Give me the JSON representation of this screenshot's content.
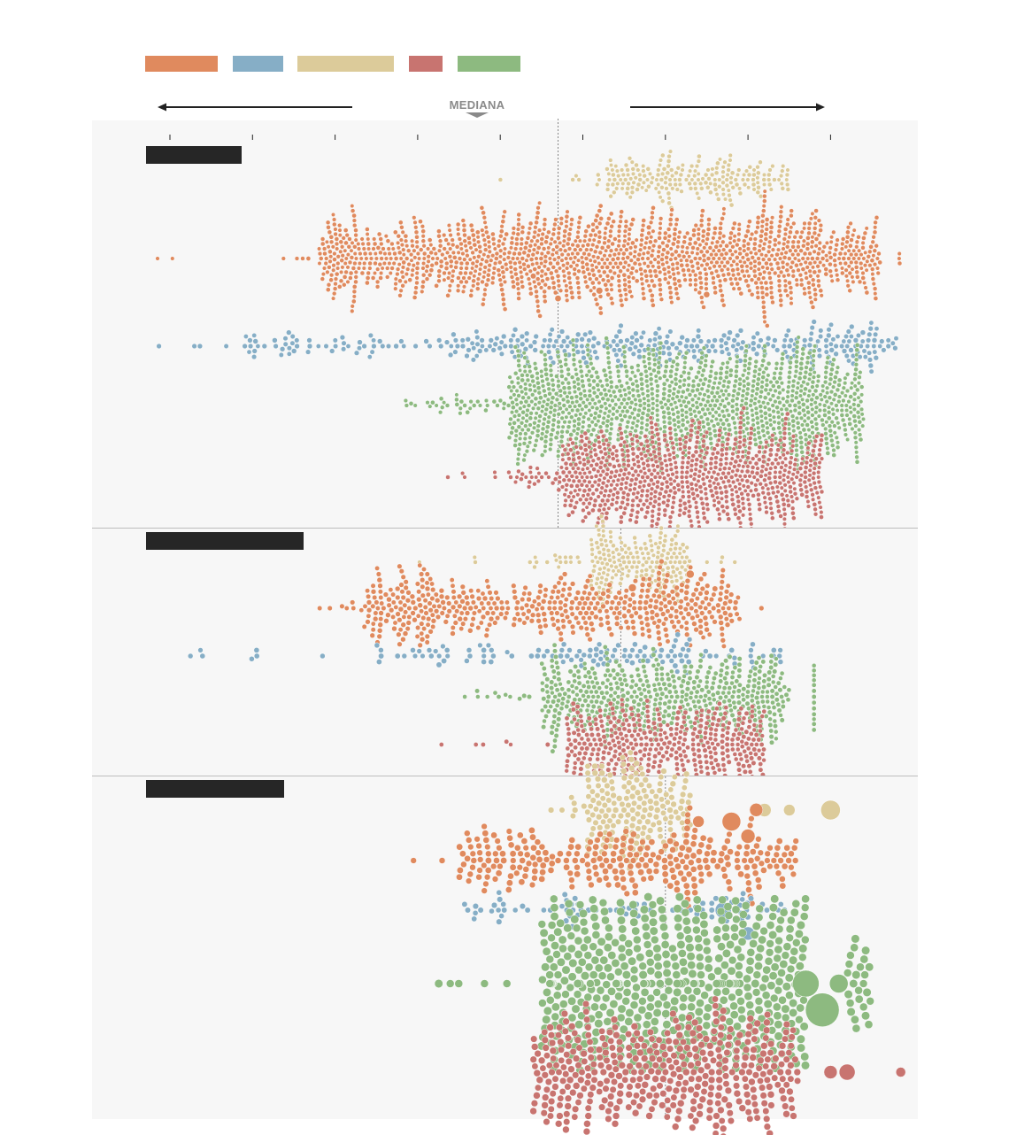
{
  "median_label": "MEDIANA",
  "colors": {
    "orange": "#e08a5e",
    "blue": "#86aec6",
    "tan": "#dccb9a",
    "red": "#c87470",
    "green": "#8dba80",
    "panel_bg": "#f7f7f7",
    "title_bar": "#262626",
    "axis": "#222222",
    "median_line": "#888888",
    "divider": "#bdbdbd"
  },
  "legend": [
    {
      "color": "orange"
    },
    {
      "color": "blue"
    },
    {
      "color": "tan"
    },
    {
      "color": "red"
    },
    {
      "color": "green"
    }
  ],
  "chart_data": {
    "type": "beeswarm",
    "x_ticks": [
      -5,
      -4,
      -3,
      -2,
      -1,
      0,
      1,
      2,
      3
    ],
    "x_range": [
      -5.8,
      3.9
    ],
    "median_marker_x": -0.3,
    "grid": false,
    "legend_placement": "top-left",
    "panels": [
      {
        "median_x": -0.3,
        "series": [
          {
            "color": "tan",
            "count": 220,
            "dist": [
              [
                -1.05,
                2.0,
                0.03
              ],
              [
                -0.3,
                2.45,
                0.15
              ],
              [
                0.3,
                2.5,
                0.8
              ],
              [
                1.2,
                2.6,
                0.02
              ]
            ],
            "radius": 2.4,
            "mode": 0.9,
            "spread": 1.0,
            "rank": 0,
            "big": []
          },
          {
            "color": "orange",
            "count": 1550,
            "dist": [
              [
                -3.7,
                3.9,
                0.05
              ],
              [
                -3.2,
                3.6,
                0.85
              ],
              [
                -0.6,
                2.9,
                0.1
              ]
            ],
            "radius": 2.4,
            "mode": -1.05,
            "spread": 1.05,
            "rank": 1,
            "big": [
              [
                -5.15,
                2.3
              ],
              [
                -4.97,
                2.3
              ],
              [
                -0.6,
                3.2
              ],
              [
                -0.3,
                3.6
              ],
              [
                0.2,
                3.8
              ],
              [
                0.8,
                2.8
              ],
              [
                1.5,
                3.5
              ],
              [
                2.78,
                2.2
              ]
            ]
          },
          {
            "color": "blue",
            "count": 360,
            "dist": [
              [
                -5.6,
                2.5,
                0.02
              ],
              [
                -4.1,
                3.6,
                0.5
              ],
              [
                -1.4,
                3.8,
                0.48
              ]
            ],
            "radius": 2.8,
            "mode": -1.2,
            "spread": 1.2,
            "rank": 2,
            "big": []
          },
          {
            "color": "green",
            "count": 1380,
            "dist": [
              [
                -2.2,
                2.7,
                0.05
              ],
              [
                -1.9,
                3.1,
                0.08
              ],
              [
                -0.9,
                3.4,
                0.87
              ]
            ],
            "radius": 2.4,
            "mode": 0.9,
            "spread": 1.4,
            "rank": 3,
            "big": []
          },
          {
            "color": "red",
            "count": 900,
            "dist": [
              [
                -1.8,
                2.4,
                0.03
              ],
              [
                -0.9,
                2.6,
                0.09
              ],
              [
                -0.3,
                2.9,
                0.88
              ]
            ],
            "radius": 2.4,
            "mode": 1.2,
            "spread": 0.95,
            "rank": 4,
            "big": []
          }
        ]
      },
      {
        "median_x": 0.46,
        "series": [
          {
            "color": "tan",
            "count": 230,
            "dist": [
              [
                -2.2,
                1.9,
                0.08
              ],
              [
                -0.6,
                1.3,
                0.2
              ],
              [
                0.1,
                1.3,
                0.72
              ]
            ],
            "radius": 2.4,
            "mode": 0.9,
            "spread": 0.7,
            "rank": 0,
            "big": []
          },
          {
            "color": "orange",
            "count": 540,
            "dist": [
              [
                -3.6,
                2.2,
                0.1
              ],
              [
                -2.7,
                1.9,
                0.85
              ],
              [
                0.5,
                1.6,
                0.05
              ]
            ],
            "radius": 2.8,
            "mode": -0.8,
            "spread": 1.15,
            "rank": 1,
            "big": [
              [
                0.6,
                4.4
              ],
              [
                1.3,
                4.5
              ],
              [
                1.6,
                3.2
              ]
            ]
          },
          {
            "color": "blue",
            "count": 130,
            "dist": [
              [
                -5.0,
                1.8,
                0.2
              ],
              [
                -2.5,
                2.4,
                0.6
              ],
              [
                0.0,
                1.3,
                0.2
              ]
            ],
            "radius": 3.0,
            "mode": -0.8,
            "spread": 1.1,
            "rank": 2,
            "big": []
          },
          {
            "color": "green",
            "count": 560,
            "dist": [
              [
                -1.6,
                1.2,
                0.08
              ],
              [
                -0.5,
                2.5,
                0.9
              ],
              [
                2.8,
                2.8,
                0.02
              ]
            ],
            "radius": 2.6,
            "mode": 1.2,
            "spread": 1.1,
            "rank": 3,
            "big": []
          },
          {
            "color": "red",
            "count": 430,
            "dist": [
              [
                -1.8,
                1.4,
                0.05
              ],
              [
                -0.2,
                2.2,
                0.95
              ]
            ],
            "radius": 2.6,
            "mode": 1.1,
            "spread": 1.0,
            "rank": 4,
            "big": []
          }
        ]
      },
      {
        "median_x": 1.0,
        "series": [
          {
            "color": "tan",
            "count": 190,
            "dist": [
              [
                -0.5,
                0.9,
                0.1
              ],
              [
                0.05,
                1.3,
                0.85
              ]
            ],
            "radius": 3.3,
            "mode": 0.9,
            "spread": 0.8,
            "rank": 0,
            "big": [
              [
                2.5,
                6.5
              ],
              [
                3.0,
                11.0
              ],
              [
                2.2,
                7.5
              ]
            ]
          },
          {
            "color": "orange",
            "count": 300,
            "dist": [
              [
                -2.3,
                3.0,
                0.05
              ],
              [
                -1.5,
                2.6,
                0.9
              ],
              [
                1.2,
                1.3,
                0.05
              ]
            ],
            "radius": 3.5,
            "mode": -0.3,
            "spread": 1.4,
            "rank": 1,
            "big": [
              [
                1.4,
                6.5
              ],
              [
                1.8,
                10.5
              ],
              [
                2.0,
                8.0
              ],
              [
                2.1,
                7.5
              ]
            ]
          },
          {
            "color": "blue",
            "count": 80,
            "dist": [
              [
                -1.5,
                2.5,
                1.0
              ]
            ],
            "radius": 3.2,
            "mode": 0.3,
            "spread": 1.2,
            "rank": 2,
            "big": [
              [
                1.7,
                9.0
              ],
              [
                2.0,
                7.5
              ]
            ]
          },
          {
            "color": "green",
            "count": 600,
            "dist": [
              [
                -1.8,
                2.0,
                0.05
              ],
              [
                -0.5,
                2.7,
                0.92
              ],
              [
                3.2,
                3.5,
                0.03
              ]
            ],
            "radius": 4.6,
            "mode": 1.9,
            "spread": 1.1,
            "rank": 3,
            "big": [
              [
                2.9,
                19.0
              ],
              [
                2.7,
                15.0
              ],
              [
                3.1,
                10.5
              ]
            ]
          },
          {
            "color": "red",
            "count": 430,
            "dist": [
              [
                -0.6,
                2.6,
                1.0
              ]
            ],
            "radius": 3.8,
            "mode": 1.65,
            "spread": 1.0,
            "rank": 4,
            "big": [
              [
                3.2,
                9.0
              ],
              [
                3.0,
                7.5
              ],
              [
                3.85,
                5.5
              ]
            ]
          }
        ]
      }
    ]
  }
}
